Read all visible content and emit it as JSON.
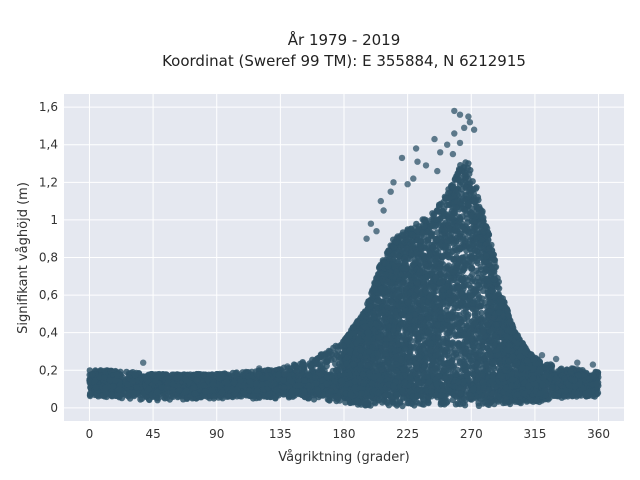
{
  "chart_data": {
    "type": "scatter",
    "title_lines": [
      "År 1979 - 2019",
      "Koordinat (Sweref 99 TM): E 355884, N 6212915"
    ],
    "xlabel": "Vågriktning (grader)",
    "ylabel": "Signifikant våghöjd (m)",
    "xlim": [
      -18,
      378
    ],
    "ylim": [
      -0.07,
      1.67
    ],
    "x_ticks": [
      0,
      45,
      90,
      135,
      180,
      225,
      270,
      315,
      360
    ],
    "x_tick_labels": [
      "0",
      "45",
      "90",
      "135",
      "180",
      "225",
      "270",
      "315",
      "360"
    ],
    "y_ticks": [
      0,
      0.2,
      0.4,
      0.6,
      0.8,
      1.0,
      1.2,
      1.4,
      1.6
    ],
    "y_tick_labels": [
      "0",
      "0,2",
      "0,4",
      "0,6",
      "0,8",
      "1",
      "1,2",
      "1,4",
      "1,6"
    ],
    "grid": true,
    "marker_color": "#2e5368",
    "background_color": "#e5e8f0",
    "envelope": {
      "x": [
        0,
        20,
        45,
        90,
        135,
        160,
        180,
        195,
        205,
        215,
        225,
        235,
        245,
        255,
        262,
        268,
        272,
        278,
        285,
        292,
        300,
        310,
        320,
        335,
        350,
        360
      ],
      "upper": [
        0.2,
        0.2,
        0.18,
        0.18,
        0.21,
        0.27,
        0.36,
        0.52,
        0.75,
        0.9,
        0.95,
        1.0,
        1.05,
        1.18,
        1.3,
        1.32,
        1.22,
        1.05,
        0.85,
        0.6,
        0.42,
        0.3,
        0.24,
        0.22,
        0.2,
        0.19
      ],
      "lower": [
        0.06,
        0.05,
        0.04,
        0.05,
        0.05,
        0.04,
        0.02,
        0.01,
        0.01,
        0.01,
        0.01,
        0.01,
        0.01,
        0.01,
        0.01,
        0.01,
        0.01,
        0.01,
        0.01,
        0.02,
        0.02,
        0.03,
        0.03,
        0.05,
        0.06,
        0.07
      ]
    },
    "outliers": [
      [
        258,
        1.58
      ],
      [
        262,
        1.56
      ],
      [
        268,
        1.55
      ],
      [
        269,
        1.52
      ],
      [
        265,
        1.49
      ],
      [
        258,
        1.46
      ],
      [
        272,
        1.48
      ],
      [
        244,
        1.43
      ],
      [
        262,
        1.41
      ],
      [
        253,
        1.4
      ],
      [
        231,
        1.38
      ],
      [
        257,
        1.35
      ],
      [
        248,
        1.36
      ],
      [
        232,
        1.31
      ],
      [
        221,
        1.33
      ],
      [
        238,
        1.29
      ],
      [
        246,
        1.26
      ],
      [
        229,
        1.22
      ],
      [
        225,
        1.19
      ],
      [
        215,
        1.2
      ],
      [
        213,
        1.15
      ],
      [
        206,
        1.1
      ],
      [
        208,
        1.05
      ],
      [
        199,
        0.98
      ],
      [
        203,
        0.94
      ],
      [
        196,
        0.9
      ],
      [
        140,
        0.22
      ],
      [
        120,
        0.21
      ],
      [
        38,
        0.24
      ],
      [
        320,
        0.28
      ],
      [
        330,
        0.26
      ],
      [
        345,
        0.24
      ],
      [
        356,
        0.23
      ]
    ]
  }
}
